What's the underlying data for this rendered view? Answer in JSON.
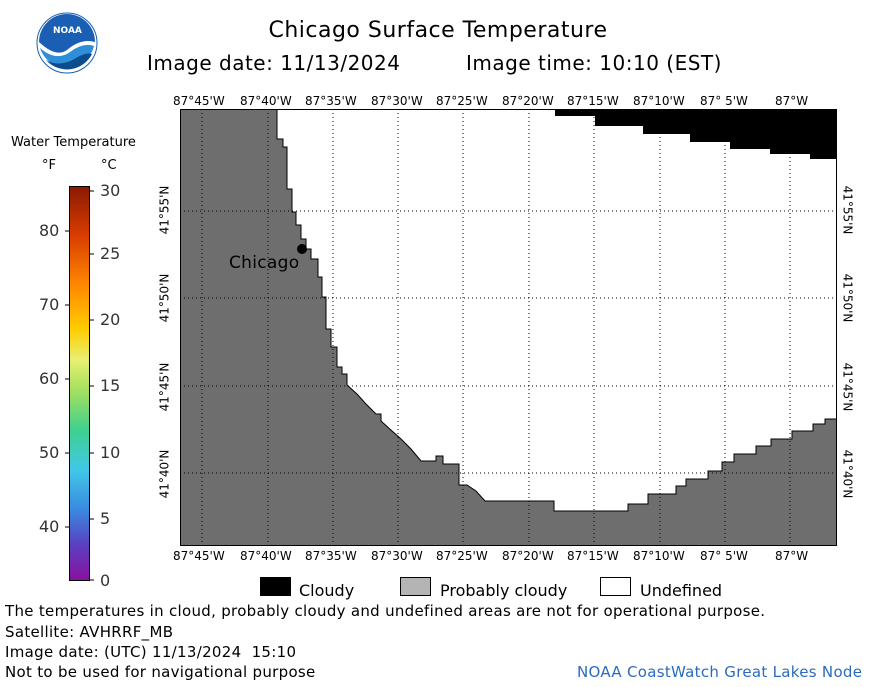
{
  "header": {
    "title": "Chicago Surface Temperature",
    "image_date": "Image date: 11/13/2024",
    "image_time": "Image time: 10:10 (EST)"
  },
  "logo": {
    "text": "NOAA",
    "color": "#1a5fb4"
  },
  "colorbar": {
    "title": "Water Temperature",
    "unit_f": "°F",
    "unit_c": "°C",
    "f_ticks": [
      "80",
      "70",
      "60",
      "50",
      "40"
    ],
    "c_ticks": [
      "30",
      "25",
      "20",
      "15",
      "10",
      "5",
      "0"
    ]
  },
  "map": {
    "lon_labels": [
      "87°45'W",
      "87°40'W",
      "87°35'W",
      "87°30'W",
      "87°25'W",
      "87°20'W",
      "87°15'W",
      "87°10'W",
      "87° 5'W",
      "87°W"
    ],
    "lat_labels": [
      "41°55'N",
      "41°50'N",
      "41°45'N",
      "41°40'N"
    ],
    "city_label": "Chicago",
    "colors": {
      "land": "#6e6e6e",
      "cloudy": "#000000",
      "probably_cloudy": "#b4b4b4",
      "undefined": "#ffffff"
    }
  },
  "legend": {
    "cloudy": "Cloudy",
    "probably_cloudy": "Probably cloudy",
    "undefined": "Undefined"
  },
  "footer": {
    "disclaimer": "The temperatures in cloud, probably cloudy and undefined areas are not for operational purpose.",
    "satellite": "Satellite: AVHRRF_MB",
    "utc_date": "Image date: (UTC) 11/13/2024  15:10",
    "nav_warning": "Not to be used for navigational purpose",
    "credit": "NOAA CoastWatch Great Lakes Node"
  }
}
